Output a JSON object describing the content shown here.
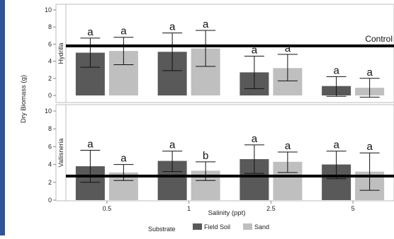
{
  "chart_data": {
    "type": "bar",
    "xlabel": "Salinity (ppt)",
    "ylabel": "Dry Biomass (g)",
    "categories": [
      "0.5",
      "1",
      "2.5",
      "5"
    ],
    "legend": {
      "title": "Substrate",
      "position": "bottom",
      "entries": [
        {
          "name": "Field Soil",
          "color": "#595959"
        },
        {
          "name": "Sand",
          "color": "#bfbfbf"
        }
      ]
    },
    "ylim": [
      0,
      10
    ],
    "yticks": [
      "0",
      "2",
      "4",
      "6",
      "8",
      "10"
    ],
    "control_label": "Control",
    "panels": [
      {
        "name": "Hydrilla",
        "control": 5.8,
        "series": [
          {
            "name": "Field Soil",
            "values": [
              5.0,
              5.1,
              2.7,
              1.1
            ],
            "err_low": [
              3.3,
              2.9,
              0.8,
              -0.1
            ],
            "err_high": [
              6.7,
              7.3,
              4.6,
              2.2
            ],
            "labels": [
              "a",
              "a",
              "a",
              "a"
            ]
          },
          {
            "name": "Sand",
            "values": [
              5.2,
              5.5,
              3.2,
              0.9
            ],
            "err_low": [
              3.6,
              3.4,
              1.7,
              -0.2
            ],
            "err_high": [
              6.8,
              7.6,
              4.8,
              2.0
            ],
            "labels": [
              "a",
              "a",
              "a",
              "a"
            ]
          }
        ]
      },
      {
        "name": "Vallisneria",
        "control": 2.7,
        "series": [
          {
            "name": "Field Soil",
            "values": [
              3.8,
              4.4,
              4.6,
              4.0
            ],
            "err_low": [
              2.0,
              3.2,
              3.0,
              2.4
            ],
            "err_high": [
              5.6,
              5.5,
              6.2,
              5.5
            ],
            "labels": [
              "a",
              "a",
              "a",
              "a"
            ]
          },
          {
            "name": "Sand",
            "values": [
              3.1,
              3.3,
              4.3,
              3.2
            ],
            "err_low": [
              2.2,
              2.2,
              3.1,
              1.1
            ],
            "err_high": [
              4.0,
              4.3,
              5.4,
              5.3
            ],
            "labels": [
              "a",
              "b",
              "a",
              "a"
            ]
          }
        ]
      }
    ]
  }
}
